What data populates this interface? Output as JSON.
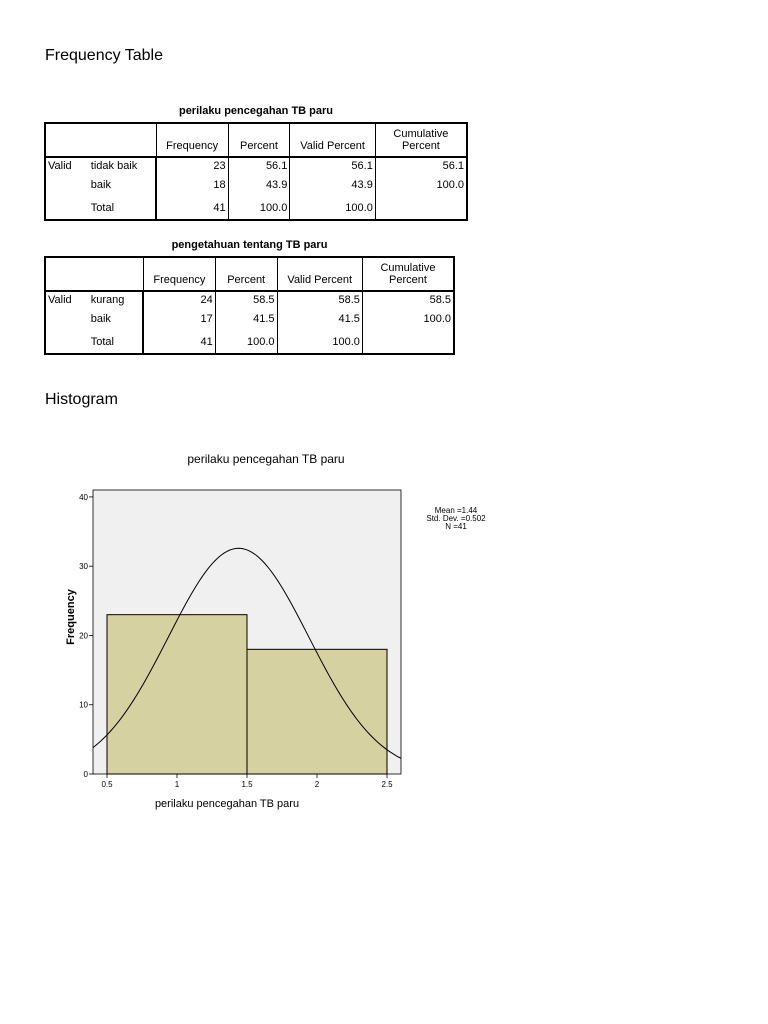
{
  "headings": {
    "frequency_table": "Frequency Table",
    "histogram": "Histogram"
  },
  "table1": {
    "caption": "perilaku pencegahan TB paru",
    "headers": [
      "Frequency",
      "Percent",
      "Valid Percent",
      "Cumulative Percent"
    ],
    "group_label": "Valid",
    "rows": [
      {
        "label": "tidak baik",
        "frequency": "23",
        "percent": "56.1",
        "valid_percent": "56.1",
        "cumulative_percent": "56.1"
      },
      {
        "label": "baik",
        "frequency": "18",
        "percent": "43.9",
        "valid_percent": "43.9",
        "cumulative_percent": "100.0"
      },
      {
        "label": "Total",
        "frequency": "41",
        "percent": "100.0",
        "valid_percent": "100.0",
        "cumulative_percent": ""
      }
    ]
  },
  "table2": {
    "caption": "pengetahuan tentang TB paru",
    "headers": [
      "Frequency",
      "Percent",
      "Valid Percent",
      "Cumulative Percent"
    ],
    "group_label": "Valid",
    "rows": [
      {
        "label": "kurang",
        "frequency": "24",
        "percent": "58.5",
        "valid_percent": "58.5",
        "cumulative_percent": "58.5"
      },
      {
        "label": "baik",
        "frequency": "17",
        "percent": "41.5",
        "valid_percent": "41.5",
        "cumulative_percent": "100.0"
      },
      {
        "label": "Total",
        "frequency": "41",
        "percent": "100.0",
        "valid_percent": "100.0",
        "cumulative_percent": ""
      }
    ]
  },
  "chart_data": {
    "type": "bar",
    "title": "perilaku pencegahan TB paru",
    "xlabel": "perilaku pencegahan TB paru",
    "ylabel": "Frequency",
    "bins": [
      {
        "from": 0.5,
        "to": 1.5,
        "value": 23
      },
      {
        "from": 1.5,
        "to": 2.5,
        "value": 18
      }
    ],
    "xlim": [
      0.4,
      2.6
    ],
    "ylim": [
      0,
      41
    ],
    "x_ticks": [
      {
        "value": 0.5,
        "label": "0.5"
      },
      {
        "value": 1,
        "label": "1"
      },
      {
        "value": 1.5,
        "label": "1.5"
      },
      {
        "value": 2,
        "label": "2"
      },
      {
        "value": 2.5,
        "label": "2.5"
      }
    ],
    "y_ticks": [
      0,
      10,
      20,
      30,
      40
    ],
    "normal_curve": {
      "mean": 1.44,
      "std_dev": 0.502,
      "n": 41,
      "bin_width": 1
    },
    "stats_labels": [
      "Mean =1.44",
      "Std. Dev. =0.502",
      "N =41"
    ],
    "colors": {
      "bar_fill": "#d6d1a0",
      "plot_bg": "#f0f0f0",
      "curve": "#000000"
    }
  }
}
